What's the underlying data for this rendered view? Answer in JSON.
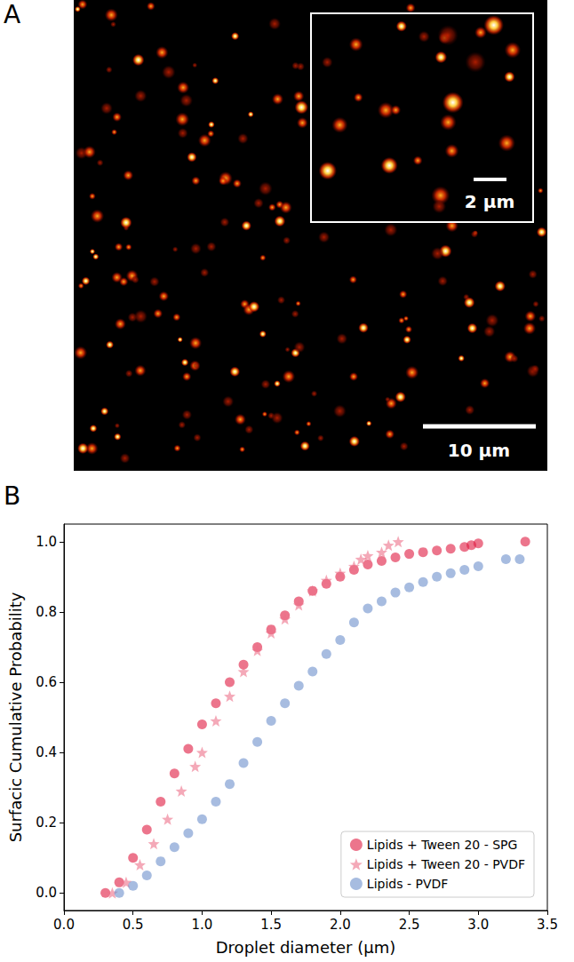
{
  "panel_a": {
    "letter": "A",
    "scale_bar": "10 µm",
    "inset_scale_bar": "2 µm"
  },
  "chart_data": {
    "letter": "B",
    "type": "scatter",
    "x_label": "Droplet diameter (μm)",
    "y_label": "Surfacic Cumulative Probability",
    "xlim": [
      0,
      3.5
    ],
    "ylim": [
      -0.05,
      1.05
    ],
    "xticks": [
      {
        "value": 0,
        "label": "0.0"
      },
      {
        "value": 0.5,
        "label": "0.5"
      },
      {
        "value": 1,
        "label": "1.0"
      },
      {
        "value": 1.5,
        "label": "1.5"
      },
      {
        "value": 2,
        "label": "2.0"
      },
      {
        "value": 2.5,
        "label": "2.5"
      },
      {
        "value": 3,
        "label": "3.0"
      },
      {
        "value": 3.5,
        "label": "3.5"
      }
    ],
    "yticks": [
      {
        "value": 0,
        "label": "0.0"
      },
      {
        "value": 0.2,
        "label": "0.2"
      },
      {
        "value": 0.4,
        "label": "0.4"
      },
      {
        "value": 0.6,
        "label": "0.6"
      },
      {
        "value": 0.8,
        "label": "0.8"
      },
      {
        "value": 1,
        "label": "1.0"
      }
    ],
    "grid": false,
    "legend": "lower right",
    "series": [
      {
        "name": "Lipids + Tween 20 - SPG",
        "color": "#e0193f",
        "marker": "circle",
        "x": [
          0.3,
          0.4,
          0.5,
          0.6,
          0.7,
          0.8,
          0.9,
          1.0,
          1.1,
          1.2,
          1.3,
          1.4,
          1.5,
          1.6,
          1.7,
          1.8,
          1.9,
          2.0,
          2.1,
          2.2,
          2.3,
          2.4,
          2.5,
          2.6,
          2.7,
          2.8,
          2.9,
          2.95,
          3.0,
          3.34
        ],
        "values": [
          0,
          0.03,
          0.1,
          0.18,
          0.26,
          0.34,
          0.41,
          0.48,
          0.54,
          0.6,
          0.65,
          0.7,
          0.75,
          0.79,
          0.83,
          0.86,
          0.88,
          0.9,
          0.92,
          0.935,
          0.945,
          0.955,
          0.965,
          0.97,
          0.975,
          0.98,
          0.985,
          0.99,
          0.995,
          1.0
        ]
      },
      {
        "name": "Lipids + Tween 20 - PVDF",
        "color": "#ec7089",
        "marker": "star",
        "x": [
          0.35,
          0.45,
          0.55,
          0.65,
          0.75,
          0.85,
          0.95,
          1.0,
          1.1,
          1.2,
          1.3,
          1.4,
          1.5,
          1.6,
          1.7,
          1.8,
          1.9,
          2.0,
          2.1,
          2.15,
          2.2,
          2.3,
          2.35,
          2.42
        ],
        "values": [
          0,
          0.03,
          0.08,
          0.14,
          0.21,
          0.29,
          0.36,
          0.4,
          0.49,
          0.56,
          0.63,
          0.69,
          0.74,
          0.78,
          0.82,
          0.86,
          0.89,
          0.91,
          0.93,
          0.95,
          0.96,
          0.97,
          0.99,
          1.0
        ]
      },
      {
        "name": "Lipids - PVDF",
        "color": "#6d8fcc",
        "marker": "circle",
        "x": [
          0.4,
          0.5,
          0.6,
          0.7,
          0.8,
          0.9,
          1.0,
          1.1,
          1.2,
          1.3,
          1.4,
          1.5,
          1.6,
          1.7,
          1.8,
          1.9,
          2.0,
          2.1,
          2.2,
          2.3,
          2.4,
          2.5,
          2.6,
          2.7,
          2.8,
          2.9,
          3.0,
          3.2,
          3.3
        ],
        "values": [
          0,
          0.02,
          0.05,
          0.09,
          0.13,
          0.17,
          0.21,
          0.26,
          0.31,
          0.37,
          0.43,
          0.49,
          0.54,
          0.59,
          0.63,
          0.68,
          0.72,
          0.77,
          0.81,
          0.83,
          0.855,
          0.87,
          0.885,
          0.9,
          0.91,
          0.92,
          0.93,
          0.95,
          0.95
        ]
      }
    ]
  }
}
